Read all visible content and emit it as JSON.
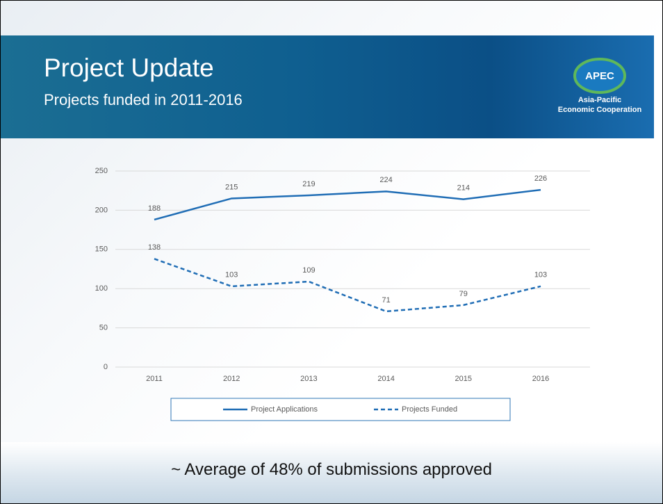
{
  "header": {
    "title": "Project Update",
    "subtitle": "Projects funded in 2011-2016"
  },
  "logo": {
    "name": "APEC",
    "line1": "Asia-Pacific",
    "line2": "Economic Cooperation"
  },
  "footer": "~ Average of 48% of submissions approved",
  "chart_data": {
    "type": "line",
    "categories": [
      "2011",
      "2012",
      "2013",
      "2014",
      "2015",
      "2016"
    ],
    "series": [
      {
        "name": "Project Applications",
        "color": "#1f6db5",
        "dash": false,
        "values": [
          188,
          215,
          219,
          224,
          214,
          226
        ]
      },
      {
        "name": "Projects Funded",
        "color": "#1f6db5",
        "dash": true,
        "values": [
          138,
          103,
          109,
          71,
          79,
          103
        ]
      }
    ],
    "ylim": [
      0,
      250
    ],
    "yticks": [
      0,
      50,
      100,
      150,
      200,
      250
    ],
    "grid": true,
    "legend": "bottom"
  }
}
